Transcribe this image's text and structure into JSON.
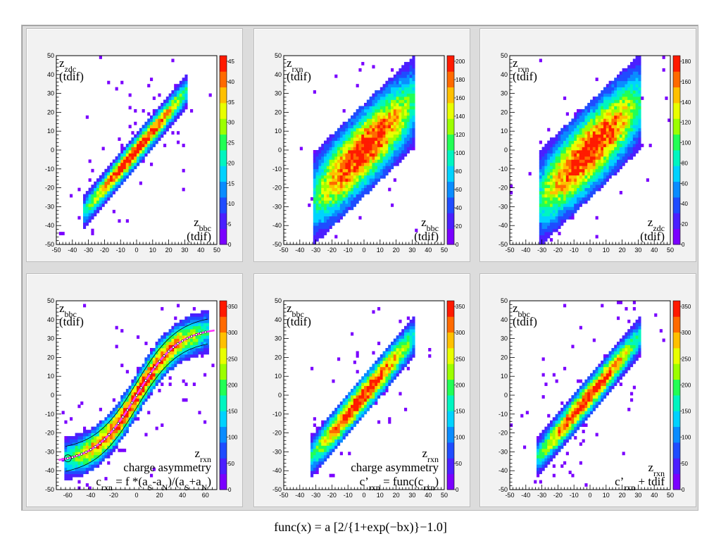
{
  "caption": "func(x) = a [2/{1+exp(−bx)}−1.0]",
  "colors": {
    "palette": [
      "#7a00ff",
      "#4b1fff",
      "#1f4cff",
      "#0a8cff",
      "#00d2ff",
      "#00f5c0",
      "#22ff55",
      "#9cff00",
      "#e8ff00",
      "#ffc000",
      "#ff6a00",
      "#ff1a00"
    ],
    "fit_curve": "#ff33ff",
    "profile_markers": "#000000",
    "outline": "#000000"
  },
  "chart_data": [
    {
      "type": "heatmap",
      "label_lines": [
        "z_zdc",
        "(tdif)"
      ],
      "corner_lines": [
        "z_bbc",
        "(tdif)"
      ],
      "xlim": [
        -50,
        50
      ],
      "ylim": [
        -50,
        50
      ],
      "x_ticks": [
        -50,
        -40,
        -30,
        -20,
        -10,
        0,
        10,
        20,
        30,
        40,
        50
      ],
      "y_ticks": [
        -50,
        -40,
        -30,
        -20,
        -10,
        0,
        10,
        20,
        30,
        40,
        50
      ],
      "colorbar_labels": [
        "45",
        "40",
        "35",
        "30",
        "25",
        "20",
        "15",
        "10",
        "5",
        "0"
      ],
      "band": {
        "x_from": -33,
        "x_to": 32,
        "slope": 1.0,
        "width": 4.5
      },
      "grid": false
    },
    {
      "type": "heatmap",
      "label_lines": [
        "z_rxn",
        "(tdif)"
      ],
      "corner_lines": [
        "z_bbc",
        "(tdif)"
      ],
      "xlim": [
        -50,
        50
      ],
      "ylim": [
        -50,
        50
      ],
      "x_ticks": [
        -50,
        -40,
        -30,
        -20,
        -10,
        0,
        10,
        20,
        30,
        40,
        50
      ],
      "y_ticks": [
        -50,
        -40,
        -30,
        -20,
        -10,
        0,
        10,
        20,
        30,
        40,
        50
      ],
      "colorbar_labels": [
        "200",
        "180",
        "160",
        "140",
        "120",
        "100",
        "80",
        "60",
        "40",
        "20",
        "0"
      ],
      "band": {
        "x_from": -32,
        "x_to": 32,
        "slope": 0.82,
        "width": 13
      },
      "grid": false
    },
    {
      "type": "heatmap",
      "label_lines": [
        "z_rxn",
        "(tdif)"
      ],
      "corner_lines": [
        "z_zdc",
        "(tdif)"
      ],
      "xlim": [
        -50,
        50
      ],
      "ylim": [
        -50,
        50
      ],
      "x_ticks": [
        -50,
        -40,
        -30,
        -20,
        -10,
        0,
        10,
        20,
        30,
        40,
        50
      ],
      "y_ticks": [
        -50,
        -40,
        -30,
        -20,
        -10,
        0,
        10,
        20,
        30,
        40,
        50
      ],
      "colorbar_labels": [
        "180",
        "160",
        "140",
        "120",
        "100",
        "80",
        "60",
        "40",
        "20",
        "0"
      ],
      "band": {
        "x_from": -32,
        "x_to": 32,
        "slope": 0.82,
        "width": 13.5
      },
      "grid": false
    },
    {
      "type": "heatmap",
      "label_lines": [
        "z_bbc",
        "(tdif)"
      ],
      "corner_lines": [
        "z_rxn",
        "charge asymmetry",
        "c_rxn = f *(a_S-a_N)/(a_S+a_N)"
      ],
      "xlim": [
        -70,
        70
      ],
      "ylim": [
        -50,
        50
      ],
      "x_ticks": [
        -60,
        -40,
        -20,
        0,
        20,
        40,
        60
      ],
      "y_ticks": [
        -50,
        -40,
        -30,
        -20,
        -10,
        0,
        10,
        20,
        30,
        40,
        50
      ],
      "colorbar_labels": [
        "350",
        "300",
        "250",
        "200",
        "150",
        "100",
        "50",
        "0"
      ],
      "band": {
        "x_from": -62,
        "x_to": 62,
        "curve": "sigmoid",
        "amplitude": 36,
        "b": 0.055,
        "width": 6
      },
      "fit": {
        "a": 36,
        "b": 0.055,
        "x_from": -68,
        "x_to": 68
      },
      "grid": false
    },
    {
      "type": "heatmap",
      "label_lines": [
        "z_bbc",
        "(tdif)"
      ],
      "corner_lines": [
        "z_rxn",
        "charge asymmetry",
        "c’_rxn = func(c_rxn)"
      ],
      "xlim": [
        -50,
        50
      ],
      "ylim": [
        -50,
        50
      ],
      "x_ticks": [
        -50,
        -40,
        -30,
        -20,
        -10,
        0,
        10,
        20,
        30,
        40,
        50
      ],
      "y_ticks": [
        -50,
        -40,
        -30,
        -20,
        -10,
        0,
        10,
        20,
        30,
        40,
        50
      ],
      "colorbar_labels": [
        "350",
        "300",
        "250",
        "200",
        "150",
        "100",
        "50",
        "0"
      ],
      "band": {
        "x_from": -33,
        "x_to": 31,
        "slope": 1.0,
        "width": 6
      },
      "grid": false
    },
    {
      "type": "heatmap",
      "label_lines": [
        "z_bbc",
        "(tdif)"
      ],
      "corner_lines": [
        "z_rxn",
        "c’_rxn + tdif"
      ],
      "xlim": [
        -50,
        50
      ],
      "ylim": [
        -50,
        50
      ],
      "x_ticks": [
        -50,
        -40,
        -30,
        -20,
        -10,
        0,
        10,
        20,
        30,
        40,
        50
      ],
      "y_ticks": [
        -50,
        -40,
        -30,
        -20,
        -10,
        0,
        10,
        20,
        30,
        40,
        50
      ],
      "colorbar_labels": [
        "350",
        "300",
        "250",
        "200",
        "150",
        "100",
        "50",
        "0"
      ],
      "band": {
        "x_from": -33,
        "x_to": 31,
        "slope": 1.0,
        "width": 5.5
      },
      "grid": false
    }
  ]
}
